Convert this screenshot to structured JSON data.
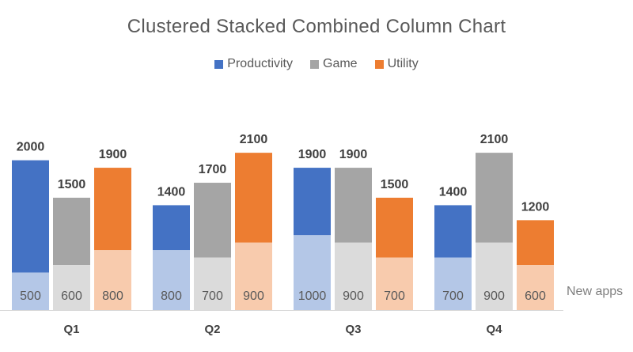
{
  "chart_data": {
    "type": "bar",
    "title": "Clustered Stacked Combined Column Chart",
    "categories": [
      "Q1",
      "Q2",
      "Q3",
      "Q4"
    ],
    "series": [
      {
        "name": "Productivity",
        "color": "#4472C4",
        "light_color": "#B4C7E7",
        "totals": [
          2000,
          1400,
          1900,
          1400
        ],
        "new_apps": [
          500,
          800,
          1000,
          700
        ]
      },
      {
        "name": "Game",
        "color": "#A5A5A5",
        "light_color": "#DBDBDB",
        "totals": [
          1500,
          1700,
          1900,
          2100
        ],
        "new_apps": [
          600,
          700,
          900,
          900
        ]
      },
      {
        "name": "Utility",
        "color": "#ED7D31",
        "light_color": "#F8CBAD",
        "totals": [
          1900,
          2100,
          1500,
          1200
        ],
        "new_apps": [
          800,
          900,
          700,
          600
        ]
      }
    ],
    "new_apps_label": "New apps",
    "ylim": [
      0,
      2100
    ],
    "legend_position": "top",
    "grid": false
  }
}
